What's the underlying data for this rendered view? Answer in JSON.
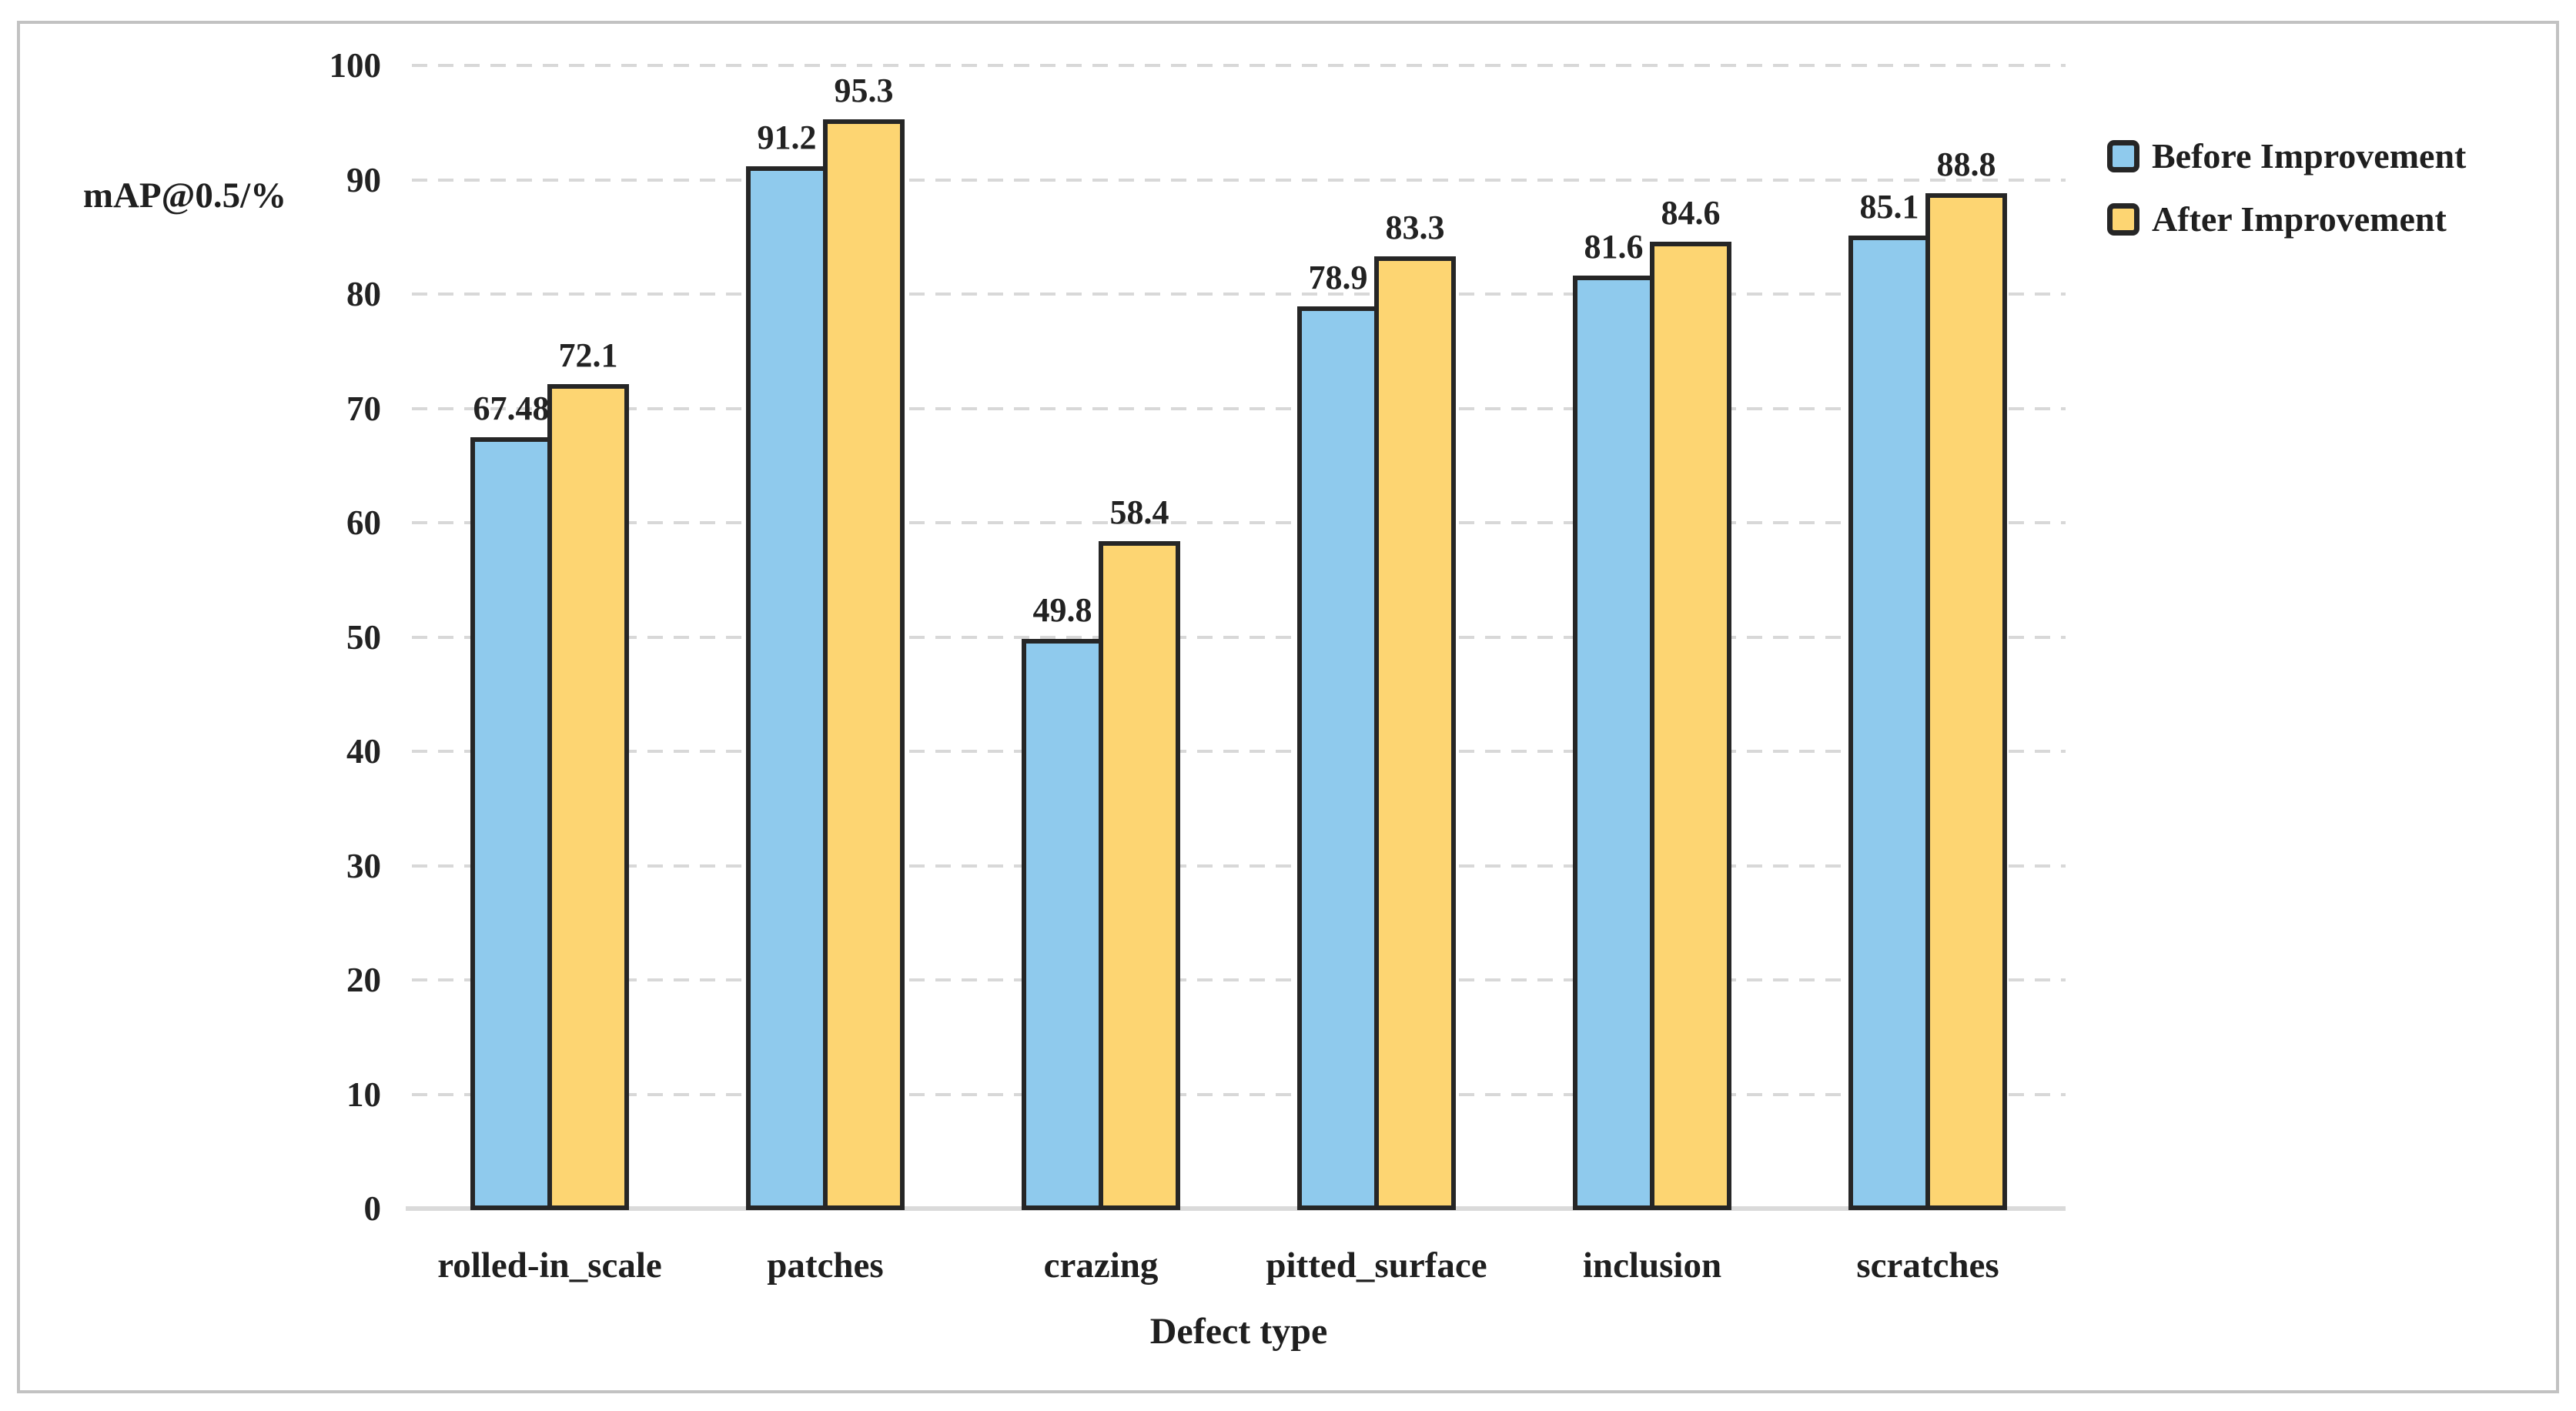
{
  "figure": {
    "frame_color": "#C2C2C2",
    "background_color": "#FFFFFF",
    "text_color": "#1F1F1F"
  },
  "chart_data": {
    "type": "bar",
    "title": "",
    "xlabel": "Defect type",
    "ylabel": "mAP@0.5/%",
    "categories": [
      "rolled-in_scale",
      "patches",
      "crazing",
      "pitted_surface",
      "inclusion",
      "scratches"
    ],
    "series": [
      {
        "name": "Before Improvement",
        "color": "#8FCAED",
        "values": [
          67.48,
          91.2,
          49.8,
          78.9,
          81.6,
          85.1
        ],
        "labels": [
          "67.48",
          "91.2",
          "49.8",
          "78.9",
          "81.6",
          "85.1"
        ]
      },
      {
        "name": "After Improvement",
        "color": "#FDD572",
        "values": [
          72.1,
          95.3,
          58.4,
          83.3,
          84.6,
          88.8
        ],
        "labels": [
          "72.1",
          "95.3",
          "58.4",
          "83.3",
          "84.6",
          "88.8"
        ]
      }
    ],
    "ylim": [
      0,
      100
    ],
    "yticks": [
      0,
      10,
      20,
      30,
      40,
      50,
      60,
      70,
      80,
      90,
      100
    ],
    "grid": "horizontal-dashed",
    "grid_color": "#D8D8D8",
    "axis_baseline_color": "#DADADA",
    "bar_edge_color": "#262626",
    "legend_position": "upper-right-outside"
  }
}
